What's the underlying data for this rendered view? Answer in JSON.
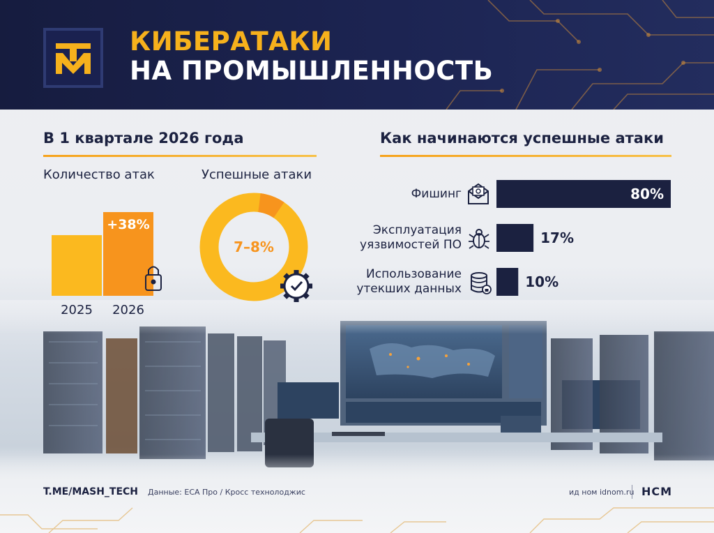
{
  "header": {
    "title_line1": "КИБЕРАТАКИ",
    "title_line2": "НА ПРОМЫШЛЕННОСТЬ",
    "logo_text": "ТМ"
  },
  "left_section": {
    "title": "В 1 квартале 2026 года",
    "attacks_subtitle": "Количество атак",
    "success_subtitle": "Успешные атаки"
  },
  "right_section": {
    "title": "Как начинаются успешные атаки"
  },
  "footer": {
    "source": "T.ME/MASH_TECH",
    "data_credit": "Данные: ECA Про / Кросс технолоджис",
    "site": "ид ном idnom.ru",
    "brand": "НСМ"
  },
  "icons": {
    "logo": "tm-logo-icon",
    "lock": "lock-icon",
    "gear_check": "gear-check-icon",
    "phishing": "email-icon",
    "exploit": "bug-icon",
    "leak": "database-icon"
  },
  "colors": {
    "navy": "#1b2140",
    "header_bg": "#1c2452",
    "orange": "#f7941d",
    "yellow": "#fbb91f",
    "orange_dark": "#f7781e"
  },
  "chart_data": [
    {
      "type": "bar",
      "title": "Количество атак",
      "categories": [
        "2025",
        "2026"
      ],
      "values": [
        100,
        138
      ],
      "annotations": [
        "+38%"
      ]
    },
    {
      "type": "pie",
      "title": "Успешные атаки",
      "center_label": "7–8%",
      "values": [
        7.5,
        92.5
      ]
    },
    {
      "type": "bar",
      "orientation": "horizontal",
      "title": "Как начинаются успешные атаки",
      "categories": [
        "Фишинг",
        "Эксплуатация уязвимостей ПО",
        "Использование утекших данных"
      ],
      "category_lines": [
        [
          "Фишинг"
        ],
        [
          "Эксплуатация",
          "уязвимостей ПО"
        ],
        [
          "Использование",
          "утекших данных"
        ]
      ],
      "values": [
        80,
        17,
        10
      ],
      "value_labels": [
        "80%",
        "17%",
        "10%"
      ]
    }
  ]
}
